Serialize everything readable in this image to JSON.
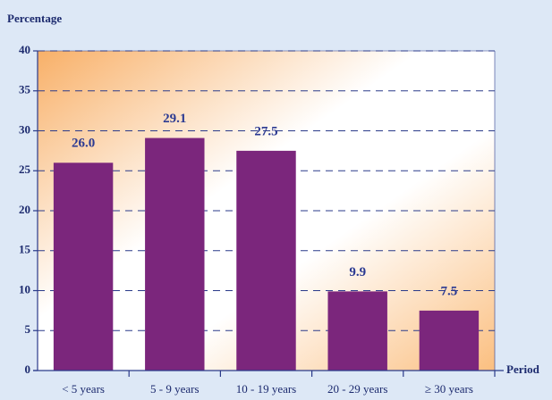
{
  "chart_data": {
    "type": "bar",
    "y_label": "Percentage",
    "x_label": "Period",
    "categories": [
      "< 5 years",
      "5 -  9 years",
      "10 -  19 years",
      "20 -  29 years",
      "≥ 30 years"
    ],
    "values": [
      26.0,
      29.1,
      27.5,
      9.9,
      7.5
    ],
    "value_labels": [
      "26.0",
      "29.1",
      "27.5",
      "9.9",
      "7.5"
    ],
    "color": "#7b267c",
    "ylim": [
      0,
      40
    ],
    "yticks": [
      0,
      5,
      10,
      15,
      20,
      25,
      30,
      35,
      40
    ],
    "grid": true
  }
}
